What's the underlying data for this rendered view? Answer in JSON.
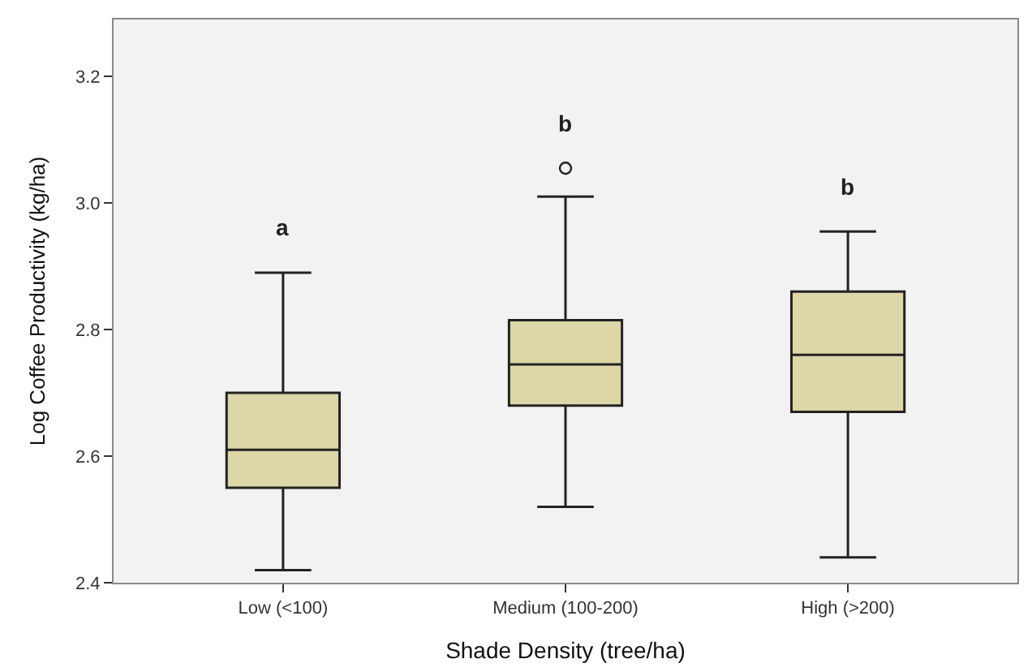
{
  "chart_data": {
    "type": "box",
    "xlabel": "Shade Density (tree/ha)",
    "ylabel": "Log Coffee Productivity (kg/ha)",
    "categories": [
      "Low (<100)",
      "Medium (100-200)",
      "High (>200)"
    ],
    "color": "#dcd6a8",
    "boxes": [
      {
        "low": 2.42,
        "q1": 2.55,
        "median": 2.61,
        "q3": 2.7,
        "high": 2.89
      },
      {
        "low": 2.52,
        "q1": 2.68,
        "median": 2.745,
        "q3": 2.815,
        "high": 3.01,
        "outliers": [
          3.055
        ]
      },
      {
        "low": 2.44,
        "q1": 2.67,
        "median": 2.76,
        "q3": 2.86,
        "high": 2.955
      }
    ],
    "ylim": [
      2.4,
      3.29
    ],
    "yticks": [
      2.4,
      2.6,
      2.8,
      {
        "value": 3.0,
        "label": "3.0"
      },
      3.2
    ],
    "annotations": [
      "a",
      "b",
      "b"
    ]
  }
}
